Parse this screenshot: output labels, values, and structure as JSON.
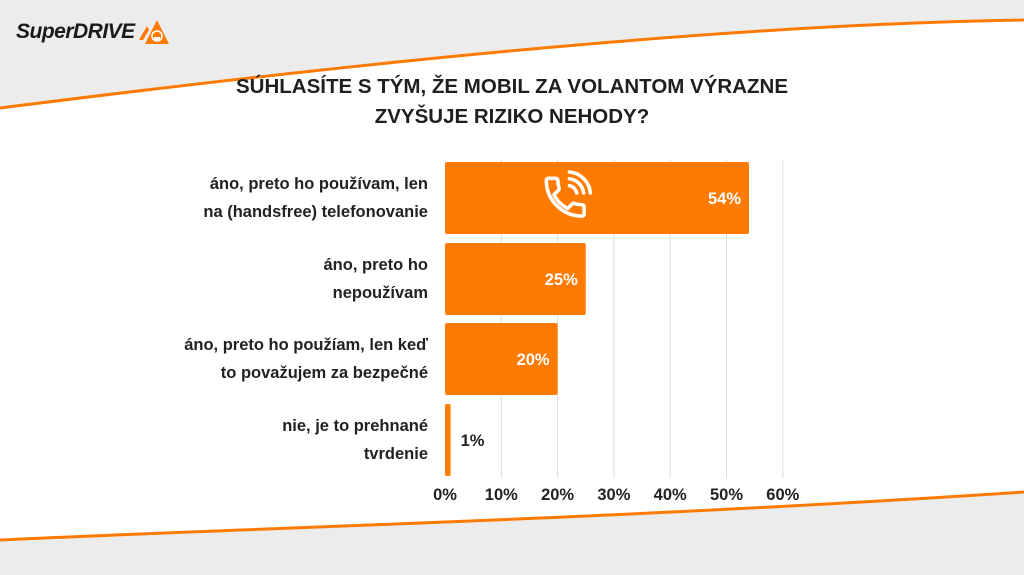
{
  "brand": {
    "name": "SuperDRIVE",
    "accent": "#ff7a00"
  },
  "chart_data": {
    "type": "bar",
    "orientation": "horizontal",
    "title": "SÚHLASÍTE S TÝM, ŽE MOBIL ZA VOLANTOM VÝRAZNE ZVYŠUJE RIZIKO NEHODY?",
    "title_lines": [
      "SÚHLASÍTE S TÝM, ŽE MOBIL ZA VOLANTOM VÝRAZNE",
      "ZVYŠUJE RIZIKO NEHODY?"
    ],
    "categories": [
      [
        "áno, preto ho používam, len",
        "na (handsfree) telefonovanie"
      ],
      [
        "áno, preto ho",
        "nepoužívam"
      ],
      [
        "áno, preto ho použíam, len keď",
        "to považujem za bezpečné"
      ],
      [
        "nie, je to prehnané",
        "tvrdenie"
      ]
    ],
    "values": [
      54,
      25,
      20,
      1
    ],
    "value_labels": [
      "54%",
      "25%",
      "20%",
      "1%"
    ],
    "xlim": [
      0,
      60
    ],
    "xticks": [
      0,
      10,
      20,
      30,
      40,
      50,
      60
    ],
    "xtick_labels": [
      "0%",
      "10%",
      "20%",
      "30%",
      "40%",
      "50%",
      "60%"
    ],
    "grid": true,
    "bar_color": "#ff7a00",
    "icon": "phone-ringing-icon"
  }
}
